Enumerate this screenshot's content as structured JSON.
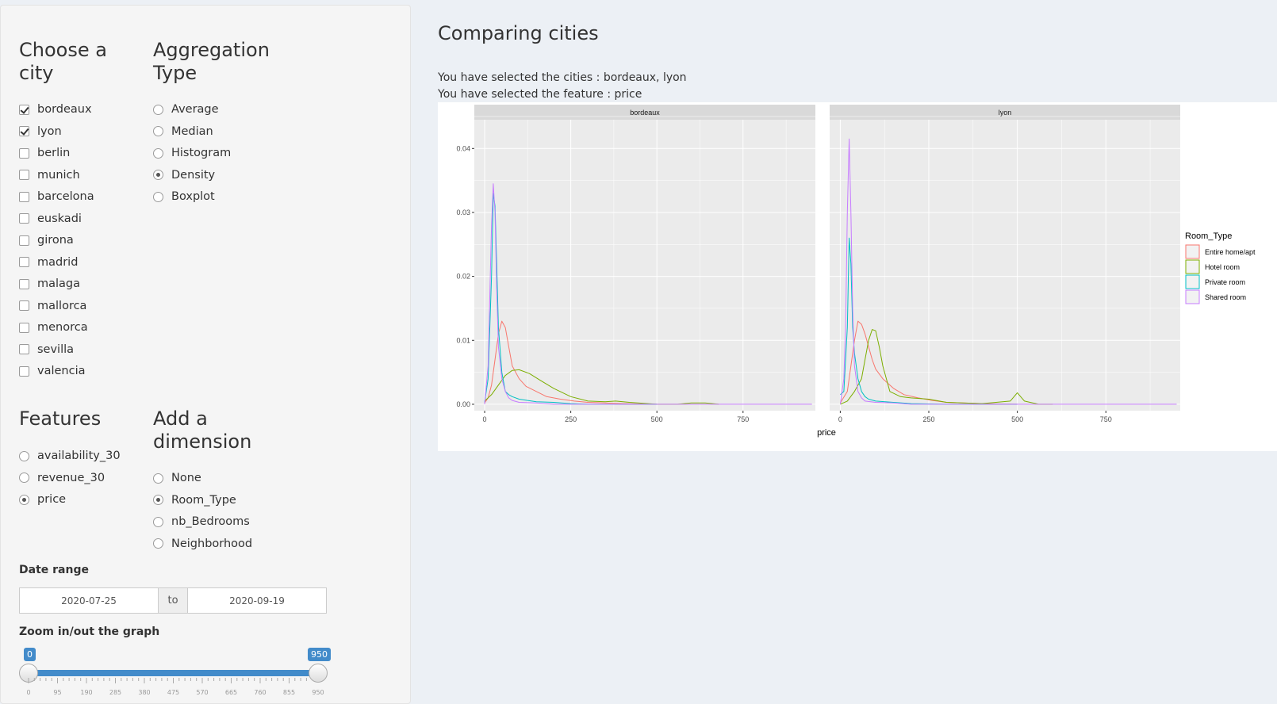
{
  "sidebar": {
    "city_section": {
      "title": "Choose a city",
      "items": [
        {
          "label": "bordeaux",
          "checked": true
        },
        {
          "label": "lyon",
          "checked": true
        },
        {
          "label": "berlin",
          "checked": false
        },
        {
          "label": "munich",
          "checked": false
        },
        {
          "label": "barcelona",
          "checked": false
        },
        {
          "label": "euskadi",
          "checked": false
        },
        {
          "label": "girona",
          "checked": false
        },
        {
          "label": "madrid",
          "checked": false
        },
        {
          "label": "malaga",
          "checked": false
        },
        {
          "label": "mallorca",
          "checked": false
        },
        {
          "label": "menorca",
          "checked": false
        },
        {
          "label": "sevilla",
          "checked": false
        },
        {
          "label": "valencia",
          "checked": false
        }
      ]
    },
    "aggregation_section": {
      "title": "Aggregation Type",
      "items": [
        {
          "label": "Average",
          "checked": false
        },
        {
          "label": "Median",
          "checked": false
        },
        {
          "label": "Histogram",
          "checked": false
        },
        {
          "label": "Density",
          "checked": true
        },
        {
          "label": "Boxplot",
          "checked": false
        }
      ]
    },
    "features_section": {
      "title": "Features",
      "items": [
        {
          "label": "availability_30",
          "checked": false
        },
        {
          "label": "revenue_30",
          "checked": false
        },
        {
          "label": "price",
          "checked": true
        }
      ]
    },
    "dimension_section": {
      "title": "Add a dimension",
      "items": [
        {
          "label": "None",
          "checked": false
        },
        {
          "label": "Room_Type",
          "checked": true
        },
        {
          "label": "nb_Bedrooms",
          "checked": false
        },
        {
          "label": "Neighborhood",
          "checked": false
        }
      ]
    },
    "date_range": {
      "label": "Date range",
      "start": "2020-07-25",
      "separator": "to",
      "end": "2020-09-19"
    },
    "zoom": {
      "label": "Zoom in/out the graph",
      "min": 0,
      "max": 950,
      "from": 0,
      "to": 950,
      "from_label": "0",
      "to_label": "950",
      "tick_labels": [
        "0",
        "95",
        "190",
        "285",
        "380",
        "475",
        "570",
        "665",
        "760",
        "855",
        "950"
      ]
    }
  },
  "main": {
    "title": "Comparing cities",
    "selected_cities": "You have selected the cities : bordeaux, lyon",
    "selected_feature": "You have selected the feature : price"
  },
  "colors": {
    "Entire home/apt": "#F8766D",
    "Hotel room": "#7CAE00",
    "Private room": "#00BFC4",
    "Shared room": "#C77CFF",
    "panel_bg": "#EBEBEB",
    "strip_bg": "#D9D9D9",
    "accent": "#428bca"
  },
  "chart_data": {
    "type": "line",
    "xlabel": "price",
    "ylabel": "",
    "xlim": [
      -30,
      960
    ],
    "ylim": [
      -0.001,
      0.0445
    ],
    "x_ticks": [
      0,
      250,
      500,
      750
    ],
    "y_ticks": [
      0.0,
      0.01,
      0.02,
      0.03,
      0.04
    ],
    "y_tick_labels": [
      "0.00",
      "0.01",
      "0.02",
      "0.03",
      "0.04"
    ],
    "legend_title": "Room_Type",
    "legend_position": "right",
    "grid": true,
    "facets": [
      {
        "name": "bordeaux",
        "series": [
          {
            "name": "Entire home/apt",
            "x": [
              0,
              10,
              20,
              30,
              40,
              50,
              60,
              70,
              80,
              100,
              120,
              150,
              180,
              220,
              260,
              300,
              400,
              500
            ],
            "y": [
              0.0002,
              0.001,
              0.003,
              0.007,
              0.011,
              0.013,
              0.012,
              0.009,
              0.006,
              0.004,
              0.0028,
              0.002,
              0.0012,
              0.0008,
              0.0005,
              0.0003,
              0.0001,
              0.0
            ]
          },
          {
            "name": "Hotel room",
            "x": [
              0,
              20,
              40,
              60,
              80,
              100,
              130,
              160,
              200,
              250,
              300,
              350,
              380,
              420,
              500,
              560,
              600,
              640,
              680
            ],
            "y": [
              0.0005,
              0.0015,
              0.003,
              0.0045,
              0.0053,
              0.0054,
              0.0048,
              0.0038,
              0.0025,
              0.0012,
              0.0005,
              0.0004,
              0.0005,
              0.0003,
              0.0,
              0.0,
              0.0002,
              0.0002,
              0.0
            ]
          },
          {
            "name": "Private room",
            "x": [
              0,
              10,
              20,
              25,
              30,
              35,
              40,
              50,
              60,
              70,
              80,
              100,
              150,
              200,
              250,
              300,
              500
            ],
            "y": [
              0.0003,
              0.004,
              0.02,
              0.033,
              0.031,
              0.022,
              0.012,
              0.005,
              0.002,
              0.0015,
              0.0012,
              0.0008,
              0.0004,
              0.0003,
              0.0001,
              0.0,
              0.0
            ]
          },
          {
            "name": "Shared room",
            "x": [
              0,
              10,
              20,
              25,
              30,
              35,
              40,
              50,
              60,
              70,
              80,
              100,
              150,
              200,
              300,
              600,
              950
            ],
            "y": [
              0.0,
              0.006,
              0.028,
              0.0345,
              0.03,
              0.018,
              0.009,
              0.004,
              0.002,
              0.001,
              0.0006,
              0.0003,
              0.0002,
              0.0,
              0.0,
              0.0,
              0.0
            ]
          }
        ]
      },
      {
        "name": "lyon",
        "series": [
          {
            "name": "Entire home/apt",
            "x": [
              0,
              20,
              30,
              40,
              50,
              60,
              70,
              80,
              90,
              100,
              120,
              150,
              180,
              220,
              260,
              300,
              400,
              500
            ],
            "y": [
              0.0002,
              0.002,
              0.006,
              0.01,
              0.013,
              0.0125,
              0.011,
              0.009,
              0.007,
              0.0055,
              0.004,
              0.0025,
              0.0015,
              0.001,
              0.0006,
              0.0003,
              0.0001,
              0.0
            ]
          },
          {
            "name": "Hotel room",
            "x": [
              0,
              20,
              40,
              60,
              70,
              80,
              90,
              100,
              110,
              120,
              140,
              170,
              200,
              250,
              300,
              400,
              480,
              500,
              520,
              560,
              600
            ],
            "y": [
              0.0,
              0.0005,
              0.002,
              0.004,
              0.007,
              0.01,
              0.0117,
              0.0115,
              0.009,
              0.006,
              0.002,
              0.0012,
              0.001,
              0.0008,
              0.0003,
              0.0001,
              0.0005,
              0.0018,
              0.0005,
              0.0,
              0.0
            ]
          },
          {
            "name": "Private room",
            "x": [
              0,
              10,
              20,
              25,
              30,
              35,
              40,
              50,
              60,
              70,
              80,
              100,
              150,
              200,
              300,
              500
            ],
            "y": [
              0.0015,
              0.002,
              0.012,
              0.026,
              0.022,
              0.012,
              0.008,
              0.004,
              0.002,
              0.0012,
              0.0008,
              0.0005,
              0.0003,
              0.0001,
              0.0,
              0.0
            ]
          },
          {
            "name": "Shared room",
            "x": [
              0,
              10,
              15,
              20,
              25,
              30,
              35,
              40,
              50,
              60,
              70,
              100,
              150,
              200,
              300,
              500,
              950
            ],
            "y": [
              0.0,
              0.004,
              0.012,
              0.03,
              0.0415,
              0.03,
              0.015,
              0.006,
              0.002,
              0.001,
              0.0005,
              0.0003,
              0.0002,
              0.0,
              0.0,
              0.0,
              0.0
            ]
          }
        ]
      }
    ]
  }
}
